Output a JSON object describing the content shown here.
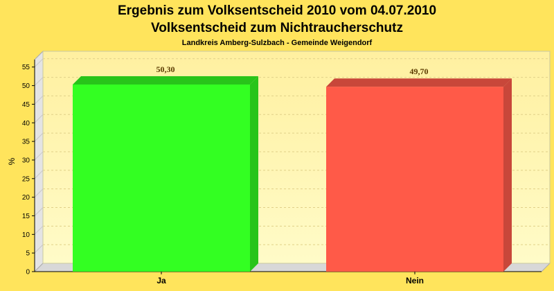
{
  "chart_data": {
    "type": "bar",
    "title": "Ergebnis zum Volksentscheid 2010 vom 04.07.2010",
    "title2": "Volksentscheid zum Nichtraucherschutz",
    "subtitle": "Landkreis Amberg-Sulzbach - Gemeinde Weigendorf",
    "ylabel": "%",
    "ylim": [
      0,
      57
    ],
    "yticks": [
      0,
      5,
      10,
      15,
      20,
      25,
      30,
      35,
      40,
      45,
      50,
      55
    ],
    "grid": true,
    "categories": [
      "Ja",
      "Nein"
    ],
    "values": [
      50.3,
      49.7
    ],
    "value_labels": [
      "50,30",
      "49,70"
    ],
    "colors": [
      "#33ff22",
      "#ff5a48"
    ],
    "side_colors": [
      "#28c41a",
      "#c8473a"
    ]
  }
}
